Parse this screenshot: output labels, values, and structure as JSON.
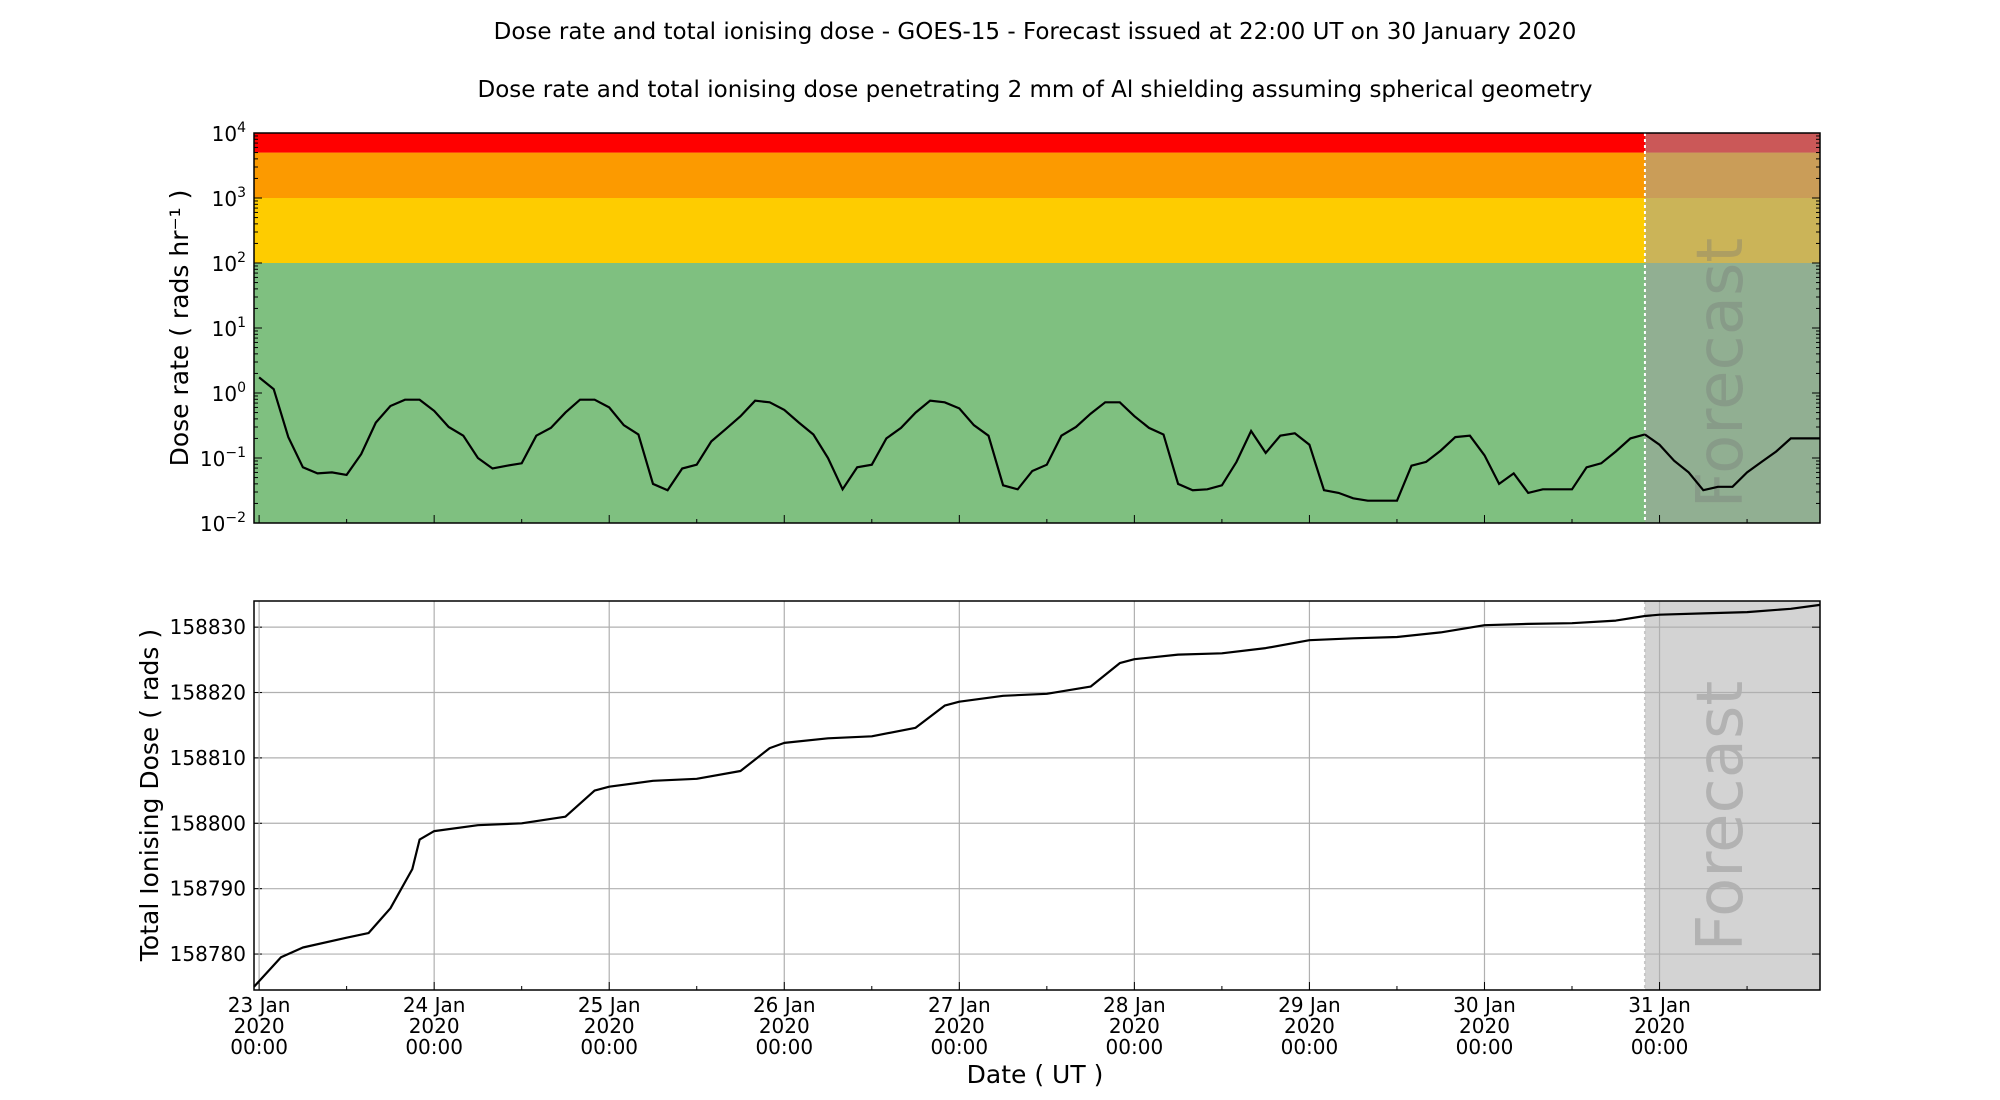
{
  "titles": {
    "main": "Dose rate and total ionising dose - GOES-15 - Forecast issued at 22:00 UT on 30 January 2020",
    "sub": "Dose rate and total ionising dose penetrating 2 mm of Al shielding assuming spherical geometry"
  },
  "forecast_label": "Forecast",
  "forecast_start": "2020-01-30T22:00",
  "xlabel": "Date ( UT )",
  "x_ticks": [
    {
      "date": "2020-01-23T00:00",
      "l1": "23 Jan",
      "l2": "2020",
      "l3": "00:00"
    },
    {
      "date": "2020-01-24T00:00",
      "l1": "24 Jan",
      "l2": "2020",
      "l3": "00:00"
    },
    {
      "date": "2020-01-25T00:00",
      "l1": "25 Jan",
      "l2": "2020",
      "l3": "00:00"
    },
    {
      "date": "2020-01-26T00:00",
      "l1": "26 Jan",
      "l2": "2020",
      "l3": "00:00"
    },
    {
      "date": "2020-01-27T00:00",
      "l1": "27 Jan",
      "l2": "2020",
      "l3": "00:00"
    },
    {
      "date": "2020-01-28T00:00",
      "l1": "28 Jan",
      "l2": "2020",
      "l3": "00:00"
    },
    {
      "date": "2020-01-29T00:00",
      "l1": "29 Jan",
      "l2": "2020",
      "l3": "00:00"
    },
    {
      "date": "2020-01-30T00:00",
      "l1": "30 Jan",
      "l2": "2020",
      "l3": "00:00"
    },
    {
      "date": "2020-01-31T00:00",
      "l1": "31 Jan",
      "l2": "2020",
      "l3": "00:00"
    }
  ],
  "chart_data": [
    {
      "type": "line",
      "ylabel": "Dose rate ( rads hr⁻¹ )",
      "yscale": "log",
      "ylim": [
        0.01,
        10000
      ],
      "xlim": [
        "2020-01-22T23:18",
        "2020-01-31T22:00"
      ],
      "y_ticks": [
        {
          "base": "10",
          "exp": "−2"
        },
        {
          "base": "10",
          "exp": "−1"
        },
        {
          "base": "10",
          "exp": "0"
        },
        {
          "base": "10",
          "exp": "1"
        },
        {
          "base": "10",
          "exp": "2"
        },
        {
          "base": "10",
          "exp": "3"
        },
        {
          "base": "10",
          "exp": "4"
        }
      ],
      "y_tick_values": [
        0.01,
        0.1,
        1,
        10,
        100,
        1000,
        10000
      ],
      "grid": false,
      "bands": [
        {
          "from": 0.01,
          "to": 100,
          "color": "#7fc080"
        },
        {
          "from": 100,
          "to": 1000,
          "color": "#fecc00"
        },
        {
          "from": 1000,
          "to": 5000,
          "color": "#fc9a00"
        },
        {
          "from": 5000,
          "to": 10000,
          "color": "#ff0000"
        }
      ],
      "line_color": "#000000",
      "x_start": "2020-01-23T00:00",
      "x_step_hours": 2,
      "values": [
        1.74,
        1.15,
        0.21,
        0.072,
        0.058,
        0.06,
        0.055,
        0.115,
        0.35,
        0.63,
        0.79,
        0.79,
        0.53,
        0.3,
        0.22,
        0.1,
        0.069,
        0.076,
        0.083,
        0.22,
        0.29,
        0.5,
        0.79,
        0.79,
        0.6,
        0.32,
        0.23,
        0.04,
        0.032,
        0.069,
        0.079,
        0.18,
        0.28,
        0.44,
        0.76,
        0.72,
        0.55,
        0.35,
        0.23,
        0.1,
        0.033,
        0.072,
        0.079,
        0.2,
        0.29,
        0.5,
        0.76,
        0.72,
        0.58,
        0.32,
        0.22,
        0.038,
        0.033,
        0.063,
        0.079,
        0.22,
        0.3,
        0.48,
        0.72,
        0.72,
        0.44,
        0.29,
        0.23,
        0.04,
        0.032,
        0.033,
        0.038,
        0.087,
        0.26,
        0.12,
        0.22,
        0.24,
        0.16,
        0.032,
        0.029,
        0.024,
        0.022,
        0.022,
        0.022,
        0.076,
        0.087,
        0.13,
        0.21,
        0.22,
        0.11,
        0.04,
        0.058,
        0.029,
        0.033,
        0.033,
        0.033,
        0.072,
        0.083,
        0.126,
        0.2,
        0.23,
        0.16,
        0.091,
        0.06,
        0.032,
        0.036,
        0.036,
        0.06,
        0.087,
        0.126,
        0.2,
        0.2,
        0.2
      ]
    },
    {
      "type": "line",
      "ylabel": "Total Ionising Dose ( rads )",
      "ylim": [
        158774.5,
        158834
      ],
      "xlim": [
        "2020-01-22T23:18",
        "2020-01-31T22:00"
      ],
      "y_tick_values": [
        158780,
        158790,
        158800,
        158810,
        158820,
        158830
      ],
      "y_ticks": [
        "158780",
        "158790",
        "158800",
        "158810",
        "158820",
        "158830"
      ],
      "grid": true,
      "line_color": "#000000",
      "points": [
        [
          "2020-01-22T23:18",
          158775.0
        ],
        [
          "2020-01-23T03:00",
          158779.5
        ],
        [
          "2020-01-23T06:00",
          158781.0
        ],
        [
          "2020-01-23T12:00",
          158782.5
        ],
        [
          "2020-01-23T15:00",
          158783.2
        ],
        [
          "2020-01-23T18:00",
          158787.0
        ],
        [
          "2020-01-23T21:00",
          158793.0
        ],
        [
          "2020-01-23T22:00",
          158797.5
        ],
        [
          "2020-01-24T00:00",
          158798.8
        ],
        [
          "2020-01-24T06:00",
          158799.7
        ],
        [
          "2020-01-24T12:00",
          158800.0
        ],
        [
          "2020-01-24T18:00",
          158801.0
        ],
        [
          "2020-01-24T22:00",
          158805.0
        ],
        [
          "2020-01-25T00:00",
          158805.6
        ],
        [
          "2020-01-25T06:00",
          158806.5
        ],
        [
          "2020-01-25T12:00",
          158806.8
        ],
        [
          "2020-01-25T18:00",
          158808.0
        ],
        [
          "2020-01-25T22:00",
          158811.5
        ],
        [
          "2020-01-26T00:00",
          158812.3
        ],
        [
          "2020-01-26T06:00",
          158813.0
        ],
        [
          "2020-01-26T12:00",
          158813.3
        ],
        [
          "2020-01-26T18:00",
          158814.6
        ],
        [
          "2020-01-26T22:00",
          158818.0
        ],
        [
          "2020-01-27T00:00",
          158818.6
        ],
        [
          "2020-01-27T06:00",
          158819.5
        ],
        [
          "2020-01-27T12:00",
          158819.8
        ],
        [
          "2020-01-27T18:00",
          158820.9
        ],
        [
          "2020-01-27T22:00",
          158824.5
        ],
        [
          "2020-01-28T00:00",
          158825.1
        ],
        [
          "2020-01-28T06:00",
          158825.8
        ],
        [
          "2020-01-28T12:00",
          158826.0
        ],
        [
          "2020-01-28T18:00",
          158826.8
        ],
        [
          "2020-01-29T00:00",
          158828.0
        ],
        [
          "2020-01-29T06:00",
          158828.3
        ],
        [
          "2020-01-29T12:00",
          158828.5
        ],
        [
          "2020-01-29T18:00",
          158829.2
        ],
        [
          "2020-01-30T00:00",
          158830.3
        ],
        [
          "2020-01-30T06:00",
          158830.5
        ],
        [
          "2020-01-30T12:00",
          158830.6
        ],
        [
          "2020-01-30T18:00",
          158831.0
        ],
        [
          "2020-01-30T22:00",
          158831.7
        ],
        [
          "2020-01-31T00:00",
          158831.9
        ],
        [
          "2020-01-31T06:00",
          158832.1
        ],
        [
          "2020-01-31T12:00",
          158832.3
        ],
        [
          "2020-01-31T18:00",
          158832.8
        ],
        [
          "2020-01-31T22:00",
          158833.4
        ]
      ]
    }
  ]
}
